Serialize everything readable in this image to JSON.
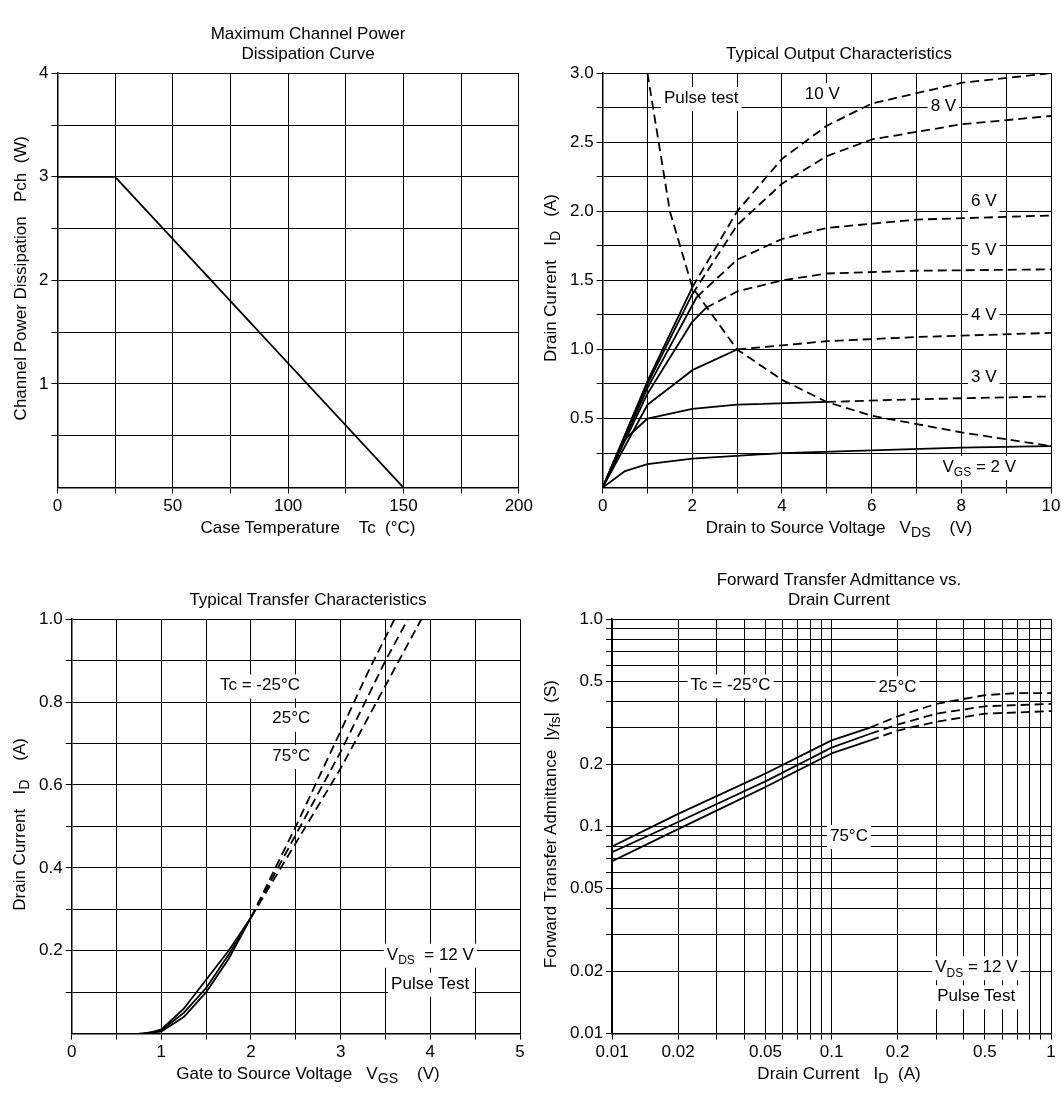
{
  "chart_data": [
    {
      "type": "line",
      "title": "Maximum Channel Power Dissipation Curve",
      "xlabel": "Case Temperature    Tc  (°C)",
      "ylabel": "Channel Power Dissipation   Pch  (W)",
      "xlim": [
        0,
        200
      ],
      "ylim": [
        0,
        4
      ],
      "xticks": [
        0,
        {
          "value": 25,
          "label": null
        },
        50,
        {
          "value": 75,
          "label": null
        },
        100,
        {
          "value": 125,
          "label": null
        },
        150,
        {
          "value": 175,
          "label": null
        },
        200
      ],
      "yticks": [
        {
          "value": 0.5,
          "label": null
        },
        1,
        {
          "value": 1.5,
          "label": null
        },
        2,
        {
          "value": 2.5,
          "label": null
        },
        3,
        {
          "value": 3.5,
          "label": null
        },
        4
      ],
      "grid": true,
      "marker": "none",
      "series": [
        {
          "color": "#000000",
          "line_style": "solid",
          "x": [
            0,
            25,
            150
          ],
          "values": [
            3,
            3,
            0
          ]
        }
      ]
    },
    {
      "type": "line",
      "title": "Typical Output Characteristics",
      "xlabel": "Drain to Source Voltage   V$_{DS}$    (V)",
      "ylabel": "Drain Current   I$_{D}$   (A)",
      "xlim": [
        0,
        10
      ],
      "ylim": [
        0,
        3
      ],
      "xticks": [
        0,
        {
          "value": 1,
          "label": null
        },
        2,
        {
          "value": 3,
          "label": null
        },
        4,
        {
          "value": 5,
          "label": null
        },
        6,
        {
          "value": 7,
          "label": null
        },
        8,
        {
          "value": 9,
          "label": null
        },
        10
      ],
      "yticks": [
        {
          "value": 0.25,
          "label": null
        },
        0.5,
        {
          "value": 0.75,
          "label": null
        },
        {
          "value": 1,
          "label": "1.0"
        },
        {
          "value": 1.25,
          "label": null
        },
        1.5,
        {
          "value": 1.75,
          "label": null
        },
        {
          "value": 2,
          "label": "2.0"
        },
        {
          "value": 2.25,
          "label": null
        },
        2.5,
        {
          "value": 2.75,
          "label": null
        },
        {
          "value": 3,
          "label": "3.0"
        }
      ],
      "grid": true,
      "marker": "none",
      "series": [
        {
          "color": "#000000",
          "line_style": "dashed",
          "x": [
            1,
            1.5,
            2,
            3,
            4,
            5,
            6,
            8,
            10
          ],
          "values": [
            3.0,
            2.0,
            1.45,
            1.0,
            0.78,
            0.62,
            0.52,
            0.4,
            0.3
          ]
        },
        {
          "color": "#000000",
          "line_style": "solid",
          "x": [
            0,
            0.5,
            1,
            2,
            4,
            6,
            8,
            10
          ],
          "values": [
            0,
            0.12,
            0.17,
            0.21,
            0.25,
            0.27,
            0.29,
            0.3
          ]
        },
        {
          "color": "#000000",
          "line_style": "solid",
          "x": [
            0,
            0.5,
            1,
            2,
            3,
            5
          ],
          "values": [
            0,
            0.35,
            0.5,
            0.57,
            0.6,
            0.62
          ]
        },
        {
          "color": "#000000",
          "line_style": "dashed",
          "x": [
            5,
            7,
            10
          ],
          "values": [
            0.62,
            0.64,
            0.66
          ]
        },
        {
          "color": "#000000",
          "line_style": "solid",
          "x": [
            0,
            1,
            2,
            3
          ],
          "values": [
            0,
            0.6,
            0.85,
            1.0
          ]
        },
        {
          "color": "#000000",
          "line_style": "dashed",
          "x": [
            3,
            5,
            7,
            10
          ],
          "values": [
            1.0,
            1.06,
            1.09,
            1.12
          ]
        },
        {
          "color": "#000000",
          "line_style": "solid",
          "x": [
            0,
            1,
            2,
            2.3
          ],
          "values": [
            0,
            0.68,
            1.2,
            1.3
          ]
        },
        {
          "color": "#000000",
          "line_style": "dashed",
          "x": [
            2.3,
            3,
            4,
            5,
            7,
            10
          ],
          "values": [
            1.3,
            1.42,
            1.5,
            1.55,
            1.57,
            1.58
          ]
        },
        {
          "color": "#000000",
          "line_style": "solid",
          "x": [
            0,
            1,
            2,
            2.1
          ],
          "values": [
            0,
            0.72,
            1.32,
            1.38
          ]
        },
        {
          "color": "#000000",
          "line_style": "dashed",
          "x": [
            2.1,
            3,
            4,
            5,
            7,
            10
          ],
          "values": [
            1.38,
            1.65,
            1.8,
            1.88,
            1.94,
            1.97
          ]
        },
        {
          "color": "#000000",
          "line_style": "solid",
          "x": [
            0,
            1,
            2
          ],
          "values": [
            0,
            0.75,
            1.4
          ]
        },
        {
          "color": "#000000",
          "line_style": "dashed",
          "x": [
            2,
            3,
            4,
            5,
            6,
            8,
            10
          ],
          "values": [
            1.4,
            1.9,
            2.2,
            2.4,
            2.52,
            2.63,
            2.69
          ]
        },
        {
          "color": "#000000",
          "line_style": "solid",
          "x": [
            0,
            1,
            2
          ],
          "values": [
            0,
            0.77,
            1.45
          ]
        },
        {
          "color": "#000000",
          "line_style": "dashed",
          "x": [
            2,
            3,
            4,
            5,
            6,
            8,
            10
          ],
          "values": [
            1.45,
            2.0,
            2.38,
            2.62,
            2.78,
            2.93,
            3.0
          ]
        }
      ],
      "annotations": [
        "Pulse test",
        {
          "text": "10 V",
          "x": 4.9,
          "y": 2.85
        },
        {
          "text": "8 V",
          "x": 7.6,
          "y": 2.76
        },
        {
          "text": "6 V",
          "x": 8.5,
          "y": 2.07
        },
        {
          "text": "5 V",
          "x": 8.5,
          "y": 1.72
        },
        {
          "text": "4 V",
          "x": 8.5,
          "y": 1.25
        },
        {
          "text": "3 V",
          "x": 8.5,
          "y": 0.8
        },
        "V$_{GS}$ = 2 V"
      ]
    },
    {
      "type": "line",
      "title": "Typical Transfer Characteristics",
      "xlabel": "Gate to Source Voltage   V$_{GS}$    (V)",
      "ylabel": "Drain Current   I$_{D}$    (A)",
      "xlim": [
        0,
        5
      ],
      "ylim": [
        0,
        1
      ],
      "xticks": [
        0,
        {
          "value": 0.5,
          "label": null
        },
        1,
        {
          "value": 1.5,
          "label": null
        },
        2,
        {
          "value": 2.5,
          "label": null
        },
        3,
        {
          "value": 3.5,
          "label": null
        },
        4,
        {
          "value": 4.5,
          "label": null
        },
        5
      ],
      "yticks": [
        {
          "value": 0.1,
          "label": null
        },
        0.2,
        {
          "value": 0.3,
          "label": null
        },
        0.4,
        {
          "value": 0.5,
          "label": null
        },
        0.6,
        {
          "value": 0.7,
          "label": null
        },
        0.8,
        {
          "value": 0.9,
          "label": null
        },
        {
          "value": 1,
          "label": "1.0"
        }
      ],
      "grid": true,
      "marker": "none",
      "series": [
        {
          "color": "#000000",
          "line_style": "solid",
          "x": [
            0.85,
            1,
            1.25,
            1.5,
            1.75,
            2
          ],
          "values": [
            0,
            0.01,
            0.06,
            0.13,
            0.2,
            0.28
          ]
        },
        {
          "color": "#000000",
          "line_style": "dashed",
          "x": [
            2,
            2.5,
            3,
            3.3,
            3.6
          ],
          "values": [
            0.28,
            0.5,
            0.73,
            0.87,
            1.0
          ]
        },
        {
          "color": "#000000",
          "line_style": "solid",
          "x": [
            0.8,
            1,
            1.25,
            1.5,
            1.75,
            2
          ],
          "values": [
            0,
            0.008,
            0.05,
            0.11,
            0.19,
            0.28
          ]
        },
        {
          "color": "#000000",
          "line_style": "dashed",
          "x": [
            2,
            2.5,
            3,
            3.5,
            3.75
          ],
          "values": [
            0.28,
            0.48,
            0.68,
            0.9,
            1.0
          ]
        },
        {
          "color": "#000000",
          "line_style": "solid",
          "x": [
            0.75,
            1,
            1.25,
            1.5,
            1.75,
            2
          ],
          "values": [
            0,
            0.005,
            0.04,
            0.1,
            0.18,
            0.28
          ]
        },
        {
          "color": "#000000",
          "line_style": "dashed",
          "x": [
            2,
            2.5,
            3,
            3.5,
            3.9
          ],
          "values": [
            0.28,
            0.46,
            0.64,
            0.84,
            1.0
          ]
        }
      ],
      "annotations": [
        "Tc = -25°C",
        {
          "text": "25°C",
          "x": 2.45,
          "y": 0.76
        },
        {
          "text": "75°C",
          "x": 2.45,
          "y": 0.67
        },
        "V$_{DS}$  = 12 V",
        "Pulse Test"
      ]
    },
    {
      "type": "line",
      "title": "Forward Transfer Admittance vs. Drain Current",
      "xlabel": "Drain Current   I$_{D}$  (A)",
      "ylabel": "Forward Transfer Admittance  |y$_{fs}$|  (S)",
      "xlim": [
        0.01,
        1
      ],
      "ylim": [
        0.01,
        1
      ],
      "log": "xy",
      "xticks": [
        0.01,
        0.02,
        {
          "value": 0.03,
          "label": null
        },
        {
          "value": 0.04,
          "label": null
        },
        0.05,
        {
          "value": 0.06,
          "label": null
        },
        {
          "value": 0.07,
          "label": null
        },
        {
          "value": 0.08,
          "label": null
        },
        {
          "value": 0.09,
          "label": null
        },
        0.1,
        0.2,
        {
          "value": 0.3,
          "label": null
        },
        {
          "value": 0.4,
          "label": null
        },
        0.5,
        {
          "value": 0.6,
          "label": null
        },
        {
          "value": 0.7,
          "label": null
        },
        {
          "value": 0.8,
          "label": null
        },
        {
          "value": 0.9,
          "label": null
        },
        1
      ],
      "yticks": [
        0.01,
        0.02,
        {
          "value": 0.03,
          "label": null
        },
        {
          "value": 0.04,
          "label": null
        },
        0.05,
        {
          "value": 0.06,
          "label": null
        },
        {
          "value": 0.07,
          "label": null
        },
        {
          "value": 0.08,
          "label": null
        },
        {
          "value": 0.09,
          "label": null
        },
        0.1,
        0.2,
        {
          "value": 0.3,
          "label": null
        },
        {
          "value": 0.4,
          "label": null
        },
        0.5,
        {
          "value": 0.6,
          "label": null
        },
        {
          "value": 0.7,
          "label": null
        },
        {
          "value": 0.8,
          "label": null
        },
        {
          "value": 0.9,
          "label": null
        },
        {
          "value": 1,
          "label": "1.0"
        }
      ],
      "grid": true,
      "marker": "none",
      "series": [
        {
          "color": "#000000",
          "line_style": "solid",
          "x": [
            0.01,
            0.02,
            0.05,
            0.1,
            0.15
          ],
          "values": [
            0.08,
            0.115,
            0.18,
            0.26,
            0.3
          ]
        },
        {
          "color": "#000000",
          "line_style": "dashed",
          "x": [
            0.15,
            0.2,
            0.3,
            0.5,
            0.7,
            1
          ],
          "values": [
            0.3,
            0.34,
            0.39,
            0.43,
            0.44,
            0.44
          ]
        },
        {
          "color": "#000000",
          "line_style": "solid",
          "x": [
            0.01,
            0.02,
            0.05,
            0.1,
            0.15
          ],
          "values": [
            0.075,
            0.105,
            0.165,
            0.24,
            0.28
          ]
        },
        {
          "color": "#000000",
          "line_style": "dashed",
          "x": [
            0.15,
            0.2,
            0.3,
            0.5,
            1
          ],
          "values": [
            0.28,
            0.31,
            0.35,
            0.38,
            0.39
          ]
        },
        {
          "color": "#000000",
          "line_style": "solid",
          "x": [
            0.01,
            0.02,
            0.05,
            0.1,
            0.15
          ],
          "values": [
            0.068,
            0.097,
            0.155,
            0.225,
            0.26
          ]
        },
        {
          "color": "#000000",
          "line_style": "dashed",
          "x": [
            0.15,
            0.2,
            0.3,
            0.5,
            1
          ],
          "values": [
            0.26,
            0.29,
            0.32,
            0.35,
            0.36
          ]
        }
      ],
      "annotations": [
        "Tc = -25°C",
        {
          "text": "25°C",
          "x": 0.2,
          "y": 0.47
        },
        {
          "text": "75°C",
          "x": 0.12,
          "y": 0.09
        },
        "V$_{DS}$ = 12 V",
        "Pulse Test"
      ]
    }
  ]
}
